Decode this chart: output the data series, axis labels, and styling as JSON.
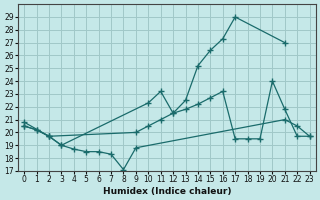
{
  "xlabel": "Humidex (Indice chaleur)",
  "bg_color": "#c5e8e8",
  "grid_color": "#a0c8c8",
  "line_color": "#1a6b6b",
  "xlim": [
    -0.5,
    23.5
  ],
  "ylim": [
    17,
    30
  ],
  "yticks": [
    17,
    18,
    19,
    20,
    21,
    22,
    23,
    24,
    25,
    26,
    27,
    28,
    29
  ],
  "xticks": [
    0,
    1,
    2,
    3,
    4,
    5,
    6,
    7,
    8,
    9,
    10,
    11,
    12,
    13,
    14,
    15,
    16,
    17,
    18,
    19,
    20,
    21,
    22,
    23
  ],
  "line_upper_x": [
    0,
    1,
    2,
    3,
    10,
    11,
    12,
    13,
    14,
    15,
    16,
    17,
    21
  ],
  "line_upper_y": [
    20.5,
    20.2,
    19.7,
    19.0,
    22.3,
    23.2,
    21.5,
    22.5,
    25.2,
    26.4,
    27.3,
    29.0,
    27.0
  ],
  "line_mid_x": [
    0,
    2,
    9,
    10,
    11,
    12,
    13,
    14,
    15,
    16,
    17,
    18,
    19,
    20,
    21,
    22,
    23
  ],
  "line_mid_y": [
    20.8,
    19.7,
    20.0,
    20.5,
    21.0,
    21.5,
    21.8,
    22.2,
    22.7,
    23.2,
    19.5,
    19.5,
    19.5,
    24.0,
    21.8,
    19.7,
    19.7
  ],
  "line_lower_x": [
    0,
    1,
    2,
    3,
    4,
    5,
    6,
    7,
    8,
    9,
    21,
    22,
    23
  ],
  "line_lower_y": [
    20.5,
    20.2,
    19.7,
    19.0,
    18.7,
    18.5,
    18.5,
    18.3,
    17.1,
    18.8,
    21.0,
    20.5,
    19.7
  ]
}
